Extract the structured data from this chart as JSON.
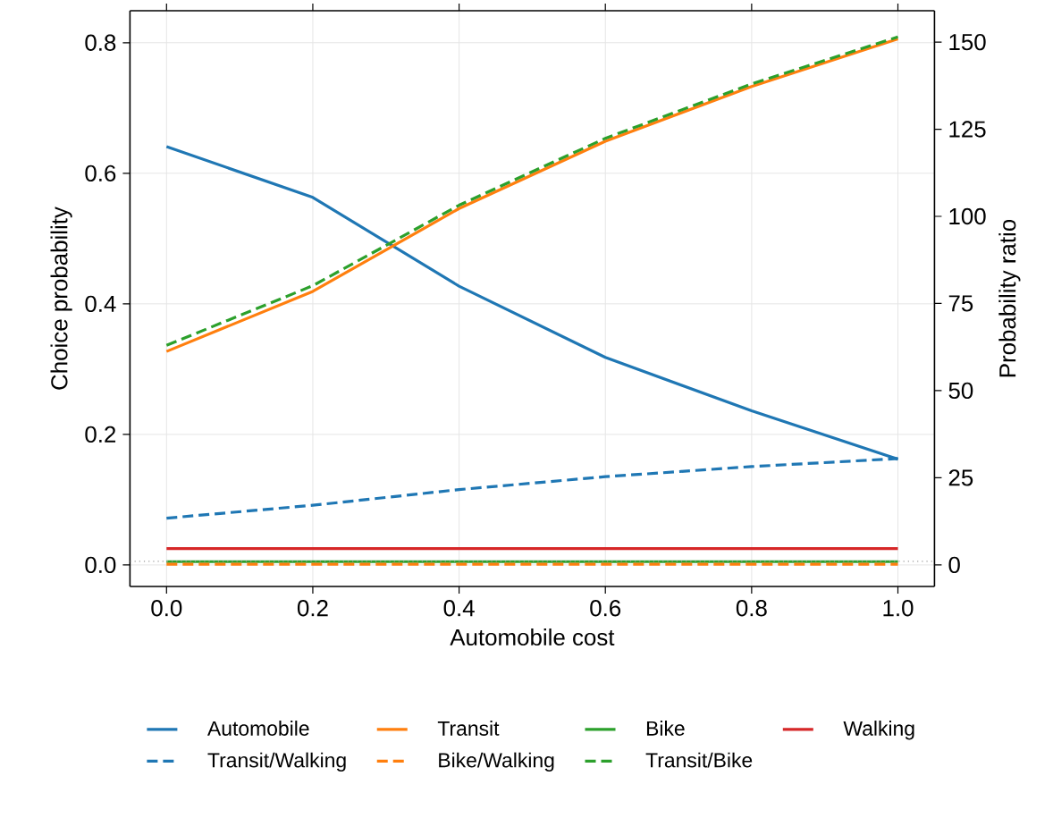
{
  "chart_data": {
    "type": "line",
    "xlabel": "Automobile cost",
    "ylabel": "Choice probability",
    "y2label": "Probability ratio",
    "x": [
      0,
      0.2,
      0.4,
      0.6,
      0.8,
      1.0
    ],
    "xlim": [
      -0.05,
      1.05
    ],
    "ylim": [
      -0.033,
      0.849
    ],
    "y2lim": [
      -6.2,
      159
    ],
    "xticks": [
      {
        "value": 0,
        "label": "0.0"
      },
      {
        "value": 0.2,
        "label": "0.2"
      },
      {
        "value": 0.4,
        "label": "0.4"
      },
      {
        "value": 0.6,
        "label": "0.6"
      },
      {
        "value": 0.8,
        "label": "0.8"
      },
      {
        "value": 1.0,
        "label": "1.0"
      }
    ],
    "yticks": [
      {
        "value": 0,
        "label": "0.0"
      },
      {
        "value": 0.2,
        "label": "0.2"
      },
      {
        "value": 0.4,
        "label": "0.4"
      },
      {
        "value": 0.6,
        "label": "0.6"
      },
      {
        "value": 0.8,
        "label": "0.8"
      }
    ],
    "y2ticks": [
      0,
      25,
      50,
      75,
      100,
      125,
      150
    ],
    "grid": true,
    "legend": "bottom",
    "marker": "none",
    "ref_lines": [
      {
        "axis": "y2",
        "value": 1,
        "color": "#999999",
        "line_style": "dotted"
      }
    ],
    "series": [
      {
        "name": "Automobile",
        "color": "#1f77b4",
        "line_style": "solid",
        "values": [
          0.641,
          0.563,
          0.427,
          0.318,
          0.236,
          0.162
        ]
      },
      {
        "name": "Transit",
        "color": "#ff7f0e",
        "line_style": "solid",
        "values": [
          0.327,
          0.419,
          0.546,
          0.649,
          0.733,
          0.806
        ]
      },
      {
        "name": "Bike",
        "color": "#2ca02c",
        "line_style": "solid",
        "values": [
          0.005,
          0.005,
          0.005,
          0.005,
          0.005,
          0.005
        ]
      },
      {
        "name": "Walking",
        "color": "#d62728",
        "line_style": "solid",
        "values": [
          0.025,
          0.025,
          0.025,
          0.025,
          0.025,
          0.025
        ]
      },
      {
        "name": "Transit/Walking",
        "color": "#1f77b4",
        "line_style": "dashed",
        "axis": "y2",
        "values": [
          13.4,
          17.1,
          21.6,
          25.3,
          28.2,
          30.5
        ]
      },
      {
        "name": "Bike/Walking",
        "color": "#ff7f0e",
        "line_style": "dashed",
        "axis": "y2",
        "values": [
          0.2,
          0.2,
          0.2,
          0.2,
          0.2,
          0.2
        ]
      },
      {
        "name": "Transit/Bike",
        "color": "#2ca02c",
        "line_style": "dashed",
        "axis": "y2",
        "values": [
          63.0,
          80.1,
          103.2,
          122.4,
          138.0,
          151.5
        ]
      }
    ]
  }
}
